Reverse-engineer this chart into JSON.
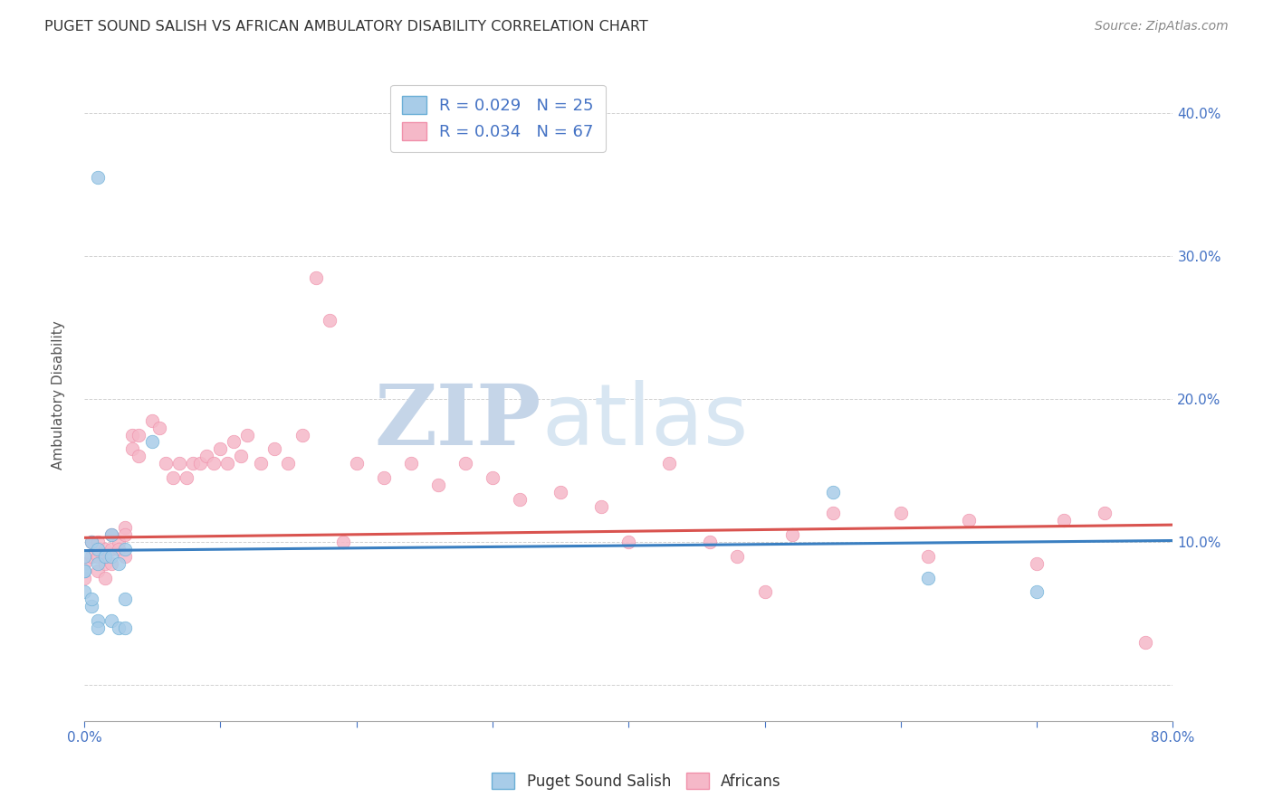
{
  "title": "PUGET SOUND SALISH VS AFRICAN AMBULATORY DISABILITY CORRELATION CHART",
  "source": "Source: ZipAtlas.com",
  "ylabel": "Ambulatory Disability",
  "xlim": [
    0.0,
    0.8
  ],
  "ylim": [
    -0.025,
    0.43
  ],
  "ytick_vals": [
    0.0,
    0.1,
    0.2,
    0.3,
    0.4
  ],
  "ytick_labels_right": [
    "",
    "10.0%",
    "20.0%",
    "30.0%",
    "40.0%"
  ],
  "xtick_vals": [
    0.0,
    0.1,
    0.2,
    0.3,
    0.4,
    0.5,
    0.6,
    0.7,
    0.8
  ],
  "xtick_labels": [
    "0.0%",
    "",
    "",
    "",
    "",
    "",
    "",
    "",
    "80.0%"
  ],
  "blue_color": "#a8cce8",
  "blue_edge_color": "#6aaed6",
  "blue_line_color": "#3a7fc1",
  "pink_color": "#f5b8c8",
  "pink_edge_color": "#f090aa",
  "pink_line_color": "#d9534f",
  "r_blue": 0.029,
  "n_blue": 25,
  "r_pink": 0.034,
  "n_pink": 67,
  "legend_label_blue": "Puget Sound Salish",
  "legend_label_pink": "Africans",
  "blue_scatter_x": [
    0.01,
    0.0,
    0.0,
    0.0,
    0.005,
    0.01,
    0.01,
    0.015,
    0.02,
    0.02,
    0.025,
    0.03,
    0.03,
    0.005,
    0.01,
    0.01,
    0.02,
    0.025,
    0.03,
    0.05,
    0.55,
    0.62,
    0.7,
    0.0,
    0.005
  ],
  "blue_scatter_y": [
    0.355,
    0.09,
    0.08,
    0.065,
    0.1,
    0.095,
    0.085,
    0.09,
    0.105,
    0.09,
    0.085,
    0.095,
    0.06,
    0.055,
    0.045,
    0.04,
    0.045,
    0.04,
    0.04,
    0.17,
    0.135,
    0.075,
    0.065,
    0.08,
    0.06
  ],
  "pink_scatter_x": [
    0.0,
    0.0,
    0.005,
    0.005,
    0.01,
    0.01,
    0.01,
    0.015,
    0.015,
    0.015,
    0.02,
    0.02,
    0.02,
    0.025,
    0.025,
    0.03,
    0.03,
    0.03,
    0.035,
    0.035,
    0.04,
    0.04,
    0.05,
    0.055,
    0.06,
    0.065,
    0.07,
    0.075,
    0.08,
    0.085,
    0.09,
    0.095,
    0.1,
    0.105,
    0.11,
    0.115,
    0.12,
    0.13,
    0.14,
    0.15,
    0.16,
    0.17,
    0.18,
    0.19,
    0.2,
    0.22,
    0.24,
    0.26,
    0.28,
    0.3,
    0.32,
    0.35,
    0.38,
    0.4,
    0.43,
    0.46,
    0.48,
    0.5,
    0.52,
    0.55,
    0.6,
    0.62,
    0.65,
    0.7,
    0.72,
    0.75,
    0.78
  ],
  "pink_scatter_y": [
    0.085,
    0.075,
    0.1,
    0.09,
    0.1,
    0.09,
    0.08,
    0.095,
    0.085,
    0.075,
    0.105,
    0.095,
    0.085,
    0.1,
    0.095,
    0.11,
    0.105,
    0.09,
    0.175,
    0.165,
    0.175,
    0.16,
    0.185,
    0.18,
    0.155,
    0.145,
    0.155,
    0.145,
    0.155,
    0.155,
    0.16,
    0.155,
    0.165,
    0.155,
    0.17,
    0.16,
    0.175,
    0.155,
    0.165,
    0.155,
    0.175,
    0.285,
    0.255,
    0.1,
    0.155,
    0.145,
    0.155,
    0.14,
    0.155,
    0.145,
    0.13,
    0.135,
    0.125,
    0.1,
    0.155,
    0.1,
    0.09,
    0.065,
    0.105,
    0.12,
    0.12,
    0.09,
    0.115,
    0.085,
    0.115,
    0.12,
    0.03
  ],
  "blue_line_x0": 0.0,
  "blue_line_x1": 0.8,
  "blue_line_y0": 0.094,
  "blue_line_y1": 0.101,
  "pink_line_x0": 0.0,
  "pink_line_x1": 0.8,
  "pink_line_y0": 0.103,
  "pink_line_y1": 0.112,
  "background_color": "#ffffff",
  "grid_color": "#cccccc",
  "title_color": "#333333",
  "axis_color": "#4472c4",
  "watermark_zip": "ZIP",
  "watermark_atlas": "atlas",
  "watermark_color_zip": "#c8d8ec",
  "watermark_color_atlas": "#c8d8ec"
}
